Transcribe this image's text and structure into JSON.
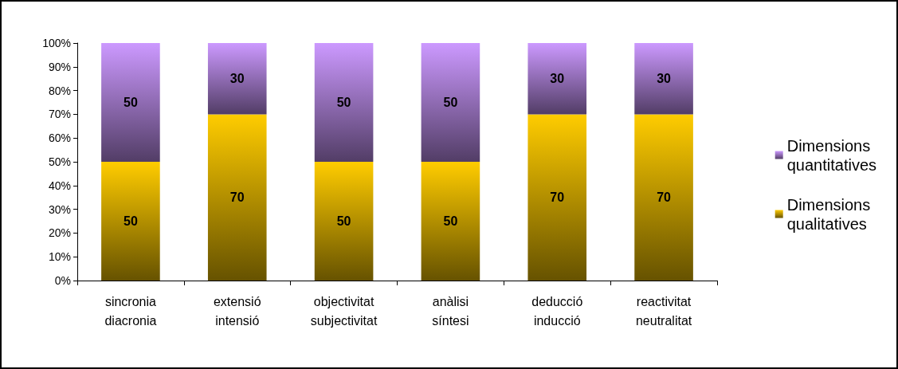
{
  "chart_data": {
    "type": "bar",
    "stacked": true,
    "categories": [
      "sincronia\ndiacronia",
      "extensió\nintensió",
      "objectivitat\nsubjectivitat",
      "anàlisi\nsíntesi",
      "deducció\ninducció",
      "reactivitat\nneutralitat"
    ],
    "series": [
      {
        "name": "Dimensions\nqualitatives",
        "color": "#ffcc00",
        "values": [
          50,
          70,
          50,
          50,
          70,
          70
        ]
      },
      {
        "name": "Dimensions\nquantitatives",
        "color": "#cc99ff",
        "values": [
          50,
          30,
          50,
          50,
          30,
          30
        ]
      }
    ],
    "ylim": [
      0,
      100
    ],
    "yticks": [
      {
        "value": 0,
        "label": "0%"
      },
      {
        "value": 10,
        "label": "10%"
      },
      {
        "value": 20,
        "label": "20%"
      },
      {
        "value": 30,
        "label": "30%"
      },
      {
        "value": 40,
        "label": "40%"
      },
      {
        "value": 50,
        "label": "50%"
      },
      {
        "value": 60,
        "label": "60%"
      },
      {
        "value": 70,
        "label": "70%"
      },
      {
        "value": 80,
        "label": "80%"
      },
      {
        "value": 90,
        "label": "90%"
      },
      {
        "value": 100,
        "label": "100%"
      }
    ],
    "data_labels": true,
    "grid": false,
    "legend": "right"
  }
}
